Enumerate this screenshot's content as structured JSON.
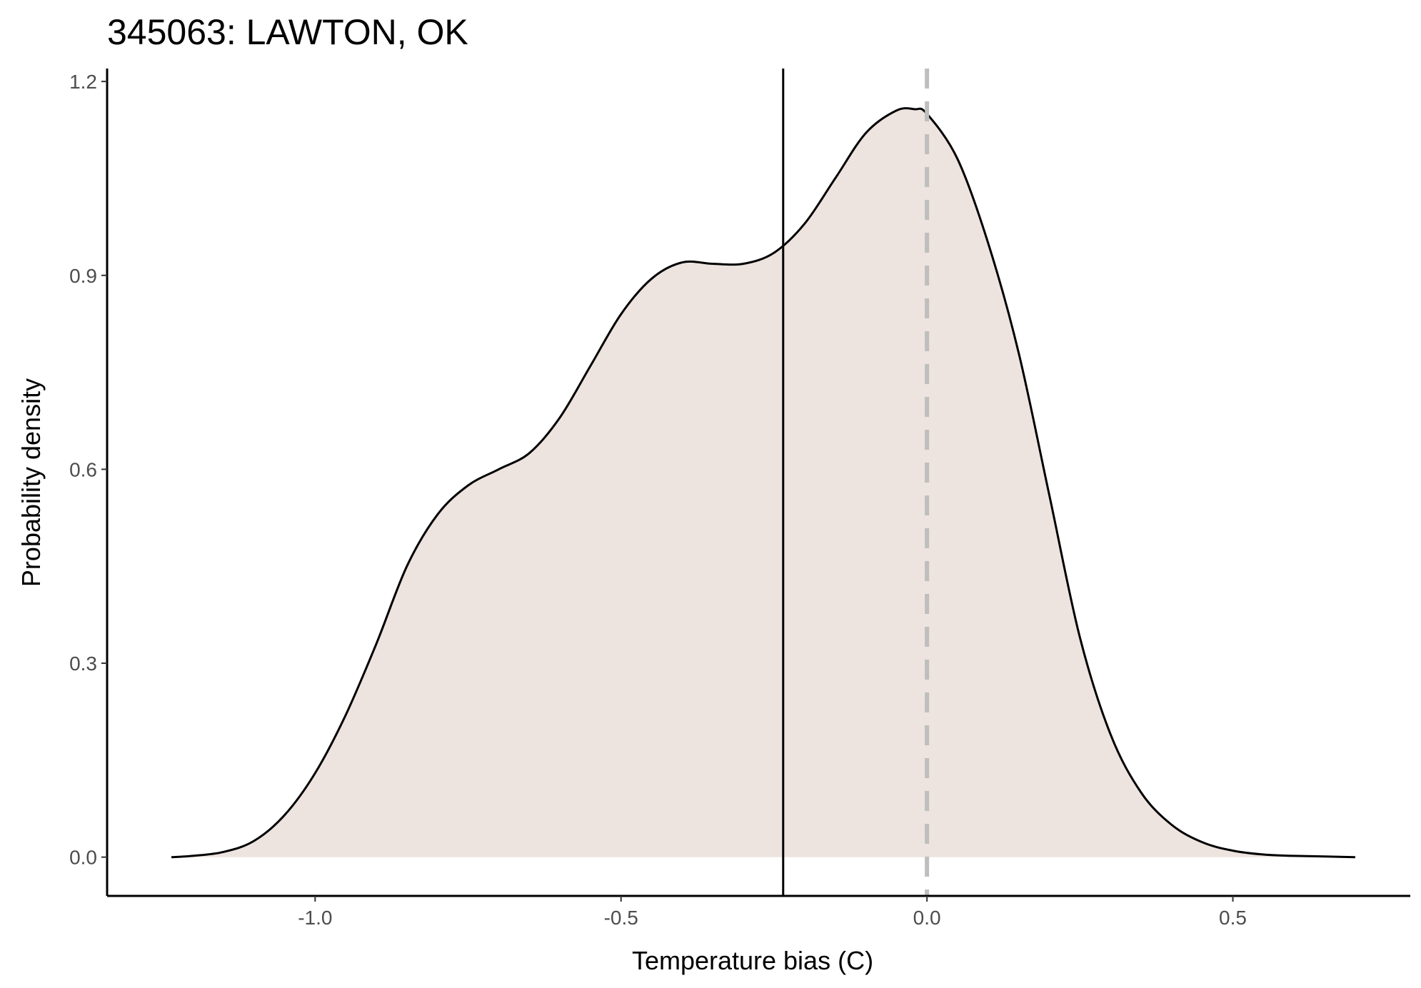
{
  "chart_data": {
    "type": "area",
    "title": "345063: LAWTON, OK",
    "xlabel": "Temperature bias (C)",
    "ylabel": "Probability density",
    "xlim": [
      -1.34,
      0.79
    ],
    "ylim": [
      -0.06,
      1.22
    ],
    "xticks": [
      -1.0,
      -0.5,
      0.0,
      0.5
    ],
    "xtick_labels": [
      "-1.0",
      "-0.5",
      "0.0",
      "0.5"
    ],
    "yticks": [
      0.0,
      0.3,
      0.6,
      0.9,
      1.2
    ],
    "ytick_labels": [
      "0.0",
      "0.3",
      "0.6",
      "0.9",
      "1.2"
    ],
    "grid": false,
    "fill_color": "#ede3df",
    "line_color": "#000000",
    "mean_line": {
      "x": -0.235,
      "color": "#000000"
    },
    "reference_line": {
      "x": 0.0,
      "color": "#bebebe",
      "style": "dashed"
    },
    "series": [
      {
        "x": [
          -1.235,
          -1.2,
          -1.15,
          -1.1,
          -1.05,
          -1.0,
          -0.95,
          -0.9,
          -0.85,
          -0.8,
          -0.75,
          -0.7,
          -0.65,
          -0.6,
          -0.55,
          -0.5,
          -0.45,
          -0.4,
          -0.35,
          -0.3,
          -0.25,
          -0.2,
          -0.15,
          -0.1,
          -0.05,
          -0.02,
          0.0,
          0.05,
          0.1,
          0.15,
          0.2,
          0.25,
          0.3,
          0.35,
          0.4,
          0.45,
          0.5,
          0.55,
          0.6,
          0.65,
          0.7
        ],
        "y": [
          0.0,
          0.002,
          0.008,
          0.025,
          0.065,
          0.13,
          0.22,
          0.33,
          0.45,
          0.53,
          0.575,
          0.6,
          0.625,
          0.68,
          0.76,
          0.84,
          0.895,
          0.92,
          0.918,
          0.918,
          0.935,
          0.98,
          1.05,
          1.12,
          1.155,
          1.157,
          1.15,
          1.08,
          0.95,
          0.78,
          0.56,
          0.34,
          0.19,
          0.1,
          0.05,
          0.023,
          0.01,
          0.004,
          0.002,
          0.001,
          0.0
        ]
      }
    ]
  }
}
